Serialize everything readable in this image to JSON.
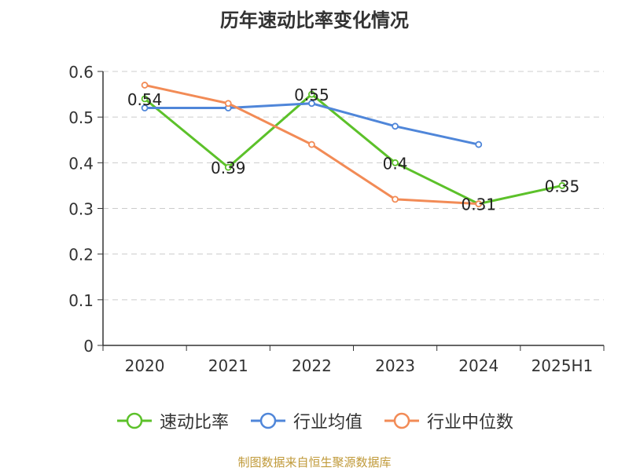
{
  "chart_data": {
    "type": "line",
    "title": "历年速动比率变化情况",
    "categories": [
      "2020",
      "2021",
      "2022",
      "2023",
      "2024",
      "2025H1"
    ],
    "y_ticks": [
      "0",
      "0.1",
      "0.2",
      "0.3",
      "0.4",
      "0.5",
      "0.6"
    ],
    "ylim": [
      0,
      0.6
    ],
    "grid": true,
    "legend_position": "bottom",
    "series": [
      {
        "name": "速动比率",
        "color": "#5cc12a",
        "values": [
          0.54,
          0.39,
          0.55,
          0.4,
          0.31,
          0.35
        ],
        "labels": [
          "0.54",
          "0.39",
          "0.55",
          "0.4",
          "0.31",
          "0.35"
        ]
      },
      {
        "name": "行业均值",
        "color": "#4f86d9",
        "values": [
          0.52,
          0.52,
          0.53,
          0.48,
          0.44,
          null
        ]
      },
      {
        "name": "行业中位数",
        "color": "#f28b56",
        "values": [
          0.57,
          0.53,
          0.44,
          0.32,
          0.31,
          null
        ]
      }
    ]
  },
  "footer": {
    "source": "制图数据来自恒生聚源数据库"
  }
}
